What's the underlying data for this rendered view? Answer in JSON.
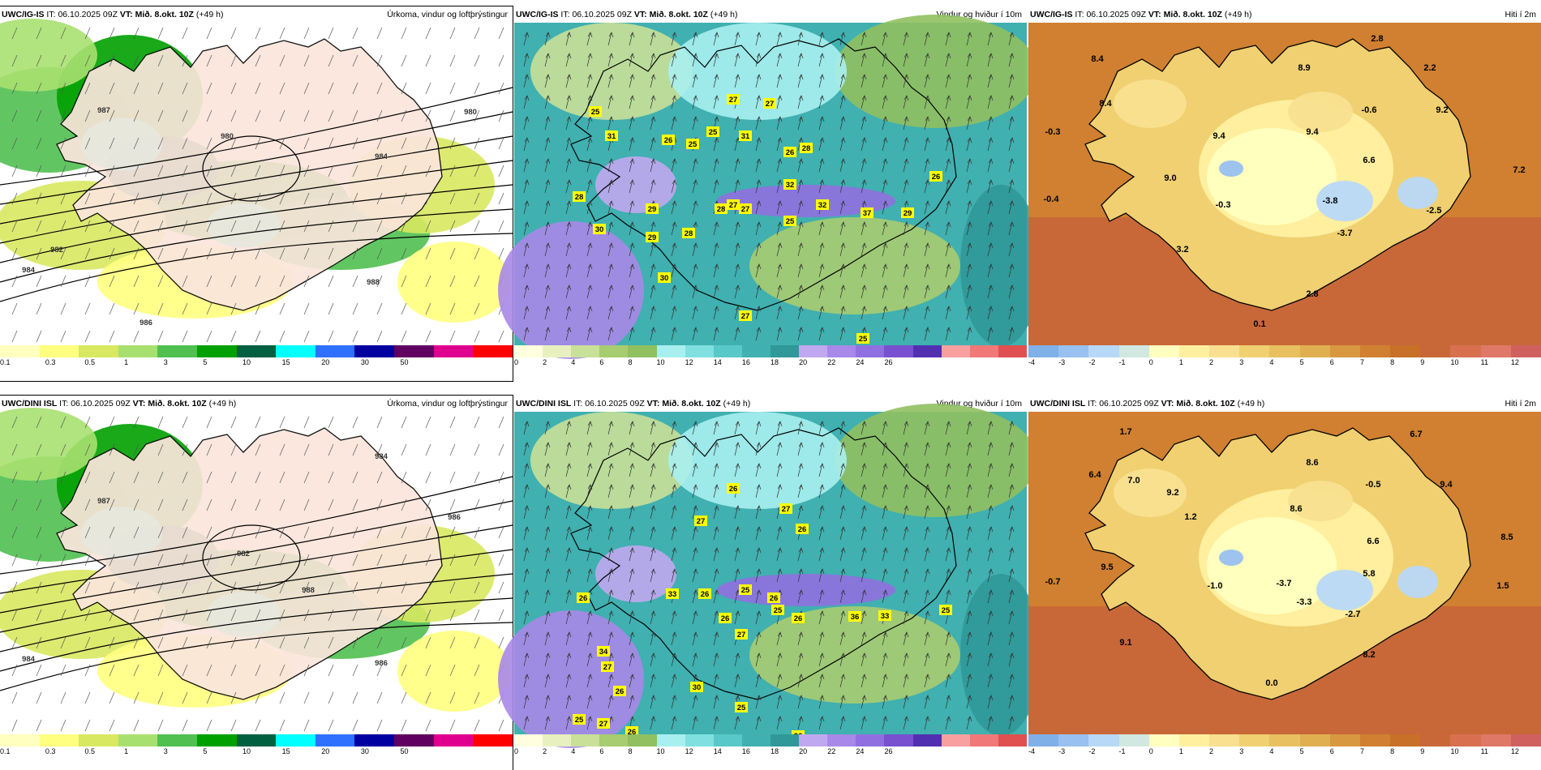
{
  "panels": [
    {
      "id": "p1",
      "model": "UWC/IG-IS",
      "it_label": "IT:",
      "it": "06.10.2025 09Z",
      "vt_label": "VT:",
      "vt": "Mið. 8.okt. 10Z",
      "lead": "(+49 h)",
      "type": "Úrkoma, vindur og loftþrýstingur",
      "style": "precip",
      "colors": [
        "#ffffc0",
        "#ffff80",
        "#d8e860",
        "#a8e070",
        "#50c050",
        "#00a000",
        "#006040",
        "#00ffff",
        "#3070ff",
        "#0000a0",
        "#600060",
        "#e00090",
        "#ff0000"
      ],
      "ticks": [
        "0.1",
        "0.3",
        "0.5",
        "1",
        "3",
        "5",
        "10",
        "15",
        "20",
        "30",
        "50"
      ],
      "labels": [
        {
          "v": "987"
        },
        {
          "v": "980"
        },
        {
          "v": "982"
        },
        {
          "v": "984"
        },
        {
          "v": "986"
        },
        {
          "v": "988"
        },
        {
          "v": "980"
        },
        {
          "v": "984"
        }
      ]
    },
    {
      "id": "p2",
      "model": "UWC/IG-IS",
      "it_label": "IT:",
      "it": "06.10.2025 09Z",
      "vt_label": "VT:",
      "vt": "Mið. 8.okt. 10Z",
      "lead": "(+49 h)",
      "type": "Vindur og hviður í 10m",
      "style": "wind",
      "colors": [
        "#ffffe0",
        "#e8f0c0",
        "#c8e098",
        "#a8cc70",
        "#90c060",
        "#a8f0f0",
        "#80e0e0",
        "#58c8c8",
        "#40b0b0",
        "#309898",
        "#c0a8f0",
        "#a888e8",
        "#9070e0",
        "#7850d0",
        "#5030b0",
        "#f8a0a0",
        "#f07878",
        "#e05050"
      ],
      "ticks": [
        "0",
        "2",
        "4",
        "6",
        "8",
        "10",
        "12",
        "14",
        "16",
        "18",
        "20",
        "22",
        "24",
        "26"
      ],
      "labels": [
        {
          "v": "25"
        },
        {
          "v": "31"
        },
        {
          "v": "26"
        },
        {
          "v": "27"
        },
        {
          "v": "25"
        },
        {
          "v": "31"
        },
        {
          "v": "27"
        },
        {
          "v": "27"
        },
        {
          "v": "28"
        },
        {
          "v": "26"
        },
        {
          "v": "26"
        },
        {
          "v": "28"
        },
        {
          "v": "29"
        },
        {
          "v": "28"
        },
        {
          "v": "27"
        },
        {
          "v": "32"
        },
        {
          "v": "32"
        },
        {
          "v": "37"
        },
        {
          "v": "29"
        },
        {
          "v": "30"
        },
        {
          "v": "29"
        },
        {
          "v": "28"
        },
        {
          "v": "30"
        },
        {
          "v": "27"
        },
        {
          "v": "25"
        },
        {
          "v": "25"
        },
        {
          "v": "25"
        }
      ]
    },
    {
      "id": "p3",
      "model": "UWC/IG-IS",
      "it_label": "IT:",
      "it": "06.10.2025 09Z",
      "vt_label": "VT:",
      "vt": "Mið. 8.okt. 10Z",
      "lead": "(+49 h)",
      "type": "Hiti í 2m",
      "style": "temp",
      "colors": [
        "#80b0e8",
        "#98c0f0",
        "#b8d8f8",
        "#d0e8e0",
        "#ffffc0",
        "#fff0a0",
        "#f8e090",
        "#f0d070",
        "#e8c060",
        "#e0b050",
        "#d89840",
        "#d08030",
        "#c87028",
        "#c86838",
        "#d87050",
        "#e07868",
        "#d06060"
      ],
      "ticks": [
        "-4",
        "-3",
        "-2",
        "-1",
        "0",
        "1",
        "2",
        "3",
        "4",
        "5",
        "6",
        "7",
        "8",
        "9",
        "10",
        "11",
        "12"
      ],
      "labels": [
        {
          "v": "2.8"
        },
        {
          "v": "8.4"
        },
        {
          "v": "8.9"
        },
        {
          "v": "2.2"
        },
        {
          "v": "8.4"
        },
        {
          "v": "-0.3"
        },
        {
          "v": "9.4"
        },
        {
          "v": "9.4"
        },
        {
          "v": "-0.6"
        },
        {
          "v": "9.2"
        },
        {
          "v": "6.6"
        },
        {
          "v": "9.0"
        },
        {
          "v": "7.2"
        },
        {
          "v": "-0.4"
        },
        {
          "v": "-0.3"
        },
        {
          "v": "-3.8"
        },
        {
          "v": "-2.5"
        },
        {
          "v": "-3.7"
        },
        {
          "v": "3.2"
        },
        {
          "v": "2.8"
        },
        {
          "v": "0.1"
        }
      ]
    },
    {
      "id": "p4",
      "model": "UWC/DINI ISL",
      "it_label": "IT:",
      "it": "06.10.2025 09Z",
      "vt_label": "VT:",
      "vt": "Mið. 8.okt. 10Z",
      "lead": "(+49 h)",
      "type": "Úrkoma, vindur og loftþrýstingur",
      "style": "precip",
      "colors": [
        "#ffffc0",
        "#ffff80",
        "#d8e860",
        "#a8e070",
        "#50c050",
        "#00a000",
        "#006040",
        "#00ffff",
        "#3070ff",
        "#0000a0",
        "#600060",
        "#e00090",
        "#ff0000"
      ],
      "ticks": [
        "0.1",
        "0.3",
        "0.5",
        "1",
        "3",
        "5",
        "10",
        "15",
        "20",
        "30",
        "50"
      ],
      "labels": [
        {
          "v": "987"
        },
        {
          "v": "984"
        },
        {
          "v": "986"
        },
        {
          "v": "988"
        },
        {
          "v": "984"
        },
        {
          "v": "982"
        },
        {
          "v": "986"
        }
      ]
    },
    {
      "id": "p5",
      "model": "UWC/DINI ISL",
      "it_label": "IT:",
      "it": "06.10.2025 09Z",
      "vt_label": "VT:",
      "vt": "Mið. 8.okt. 10Z",
      "lead": "(+49 h)",
      "type": "Vindur og hviður í 10m",
      "style": "wind",
      "colors": [
        "#ffffe0",
        "#e8f0c0",
        "#c8e098",
        "#a8cc70",
        "#90c060",
        "#a8f0f0",
        "#80e0e0",
        "#58c8c8",
        "#40b0b0",
        "#309898",
        "#c0a8f0",
        "#a888e8",
        "#9070e0",
        "#7850d0",
        "#5030b0",
        "#f8a0a0",
        "#f07878",
        "#e05050"
      ],
      "ticks": [
        "0",
        "2",
        "4",
        "6",
        "8",
        "10",
        "12",
        "14",
        "16",
        "18",
        "20",
        "22",
        "24",
        "26"
      ],
      "labels": [
        {
          "v": "26"
        },
        {
          "v": "27"
        },
        {
          "v": "27"
        },
        {
          "v": "26"
        },
        {
          "v": "25"
        },
        {
          "v": "26"
        },
        {
          "v": "26"
        },
        {
          "v": "26"
        },
        {
          "v": "33"
        },
        {
          "v": "26"
        },
        {
          "v": "25"
        },
        {
          "v": "27"
        },
        {
          "v": "26"
        },
        {
          "v": "36"
        },
        {
          "v": "33"
        },
        {
          "v": "25"
        },
        {
          "v": "34"
        },
        {
          "v": "27"
        },
        {
          "v": "26"
        },
        {
          "v": "30"
        },
        {
          "v": "26"
        },
        {
          "v": "25"
        },
        {
          "v": "25"
        },
        {
          "v": "27"
        },
        {
          "v": "26"
        }
      ]
    },
    {
      "id": "p6",
      "model": "UWC/DINI ISL",
      "it_label": "IT:",
      "it": "06.10.2025 09Z",
      "vt_label": "VT:",
      "vt": "Mið. 8.okt. 10Z",
      "lead": "(+49 h)",
      "type": "Hiti í 2m",
      "style": "temp",
      "colors": [
        "#80b0e8",
        "#98c0f0",
        "#b8d8f8",
        "#d0e8e0",
        "#ffffc0",
        "#fff0a0",
        "#f8e090",
        "#f0d070",
        "#e8c060",
        "#e0b050",
        "#d89840",
        "#d08030",
        "#c87028",
        "#c86838",
        "#d87050",
        "#e07868",
        "#d06060"
      ],
      "ticks": [
        "-4",
        "-3",
        "-2",
        "-1",
        "0",
        "1",
        "2",
        "3",
        "4",
        "5",
        "6",
        "7",
        "8",
        "9",
        "10",
        "11",
        "12"
      ],
      "labels": [
        {
          "v": "1.7"
        },
        {
          "v": "6.7"
        },
        {
          "v": "6.4"
        },
        {
          "v": "7.0"
        },
        {
          "v": "8.6"
        },
        {
          "v": "9.2"
        },
        {
          "v": "-0.5"
        },
        {
          "v": "9.4"
        },
        {
          "v": "1.2"
        },
        {
          "v": "8.6"
        },
        {
          "v": "6.6"
        },
        {
          "v": "8.5"
        },
        {
          "v": "9.5"
        },
        {
          "v": "5.8"
        },
        {
          "v": "-0.7"
        },
        {
          "v": "-1.0"
        },
        {
          "v": "-3.7"
        },
        {
          "v": "1.5"
        },
        {
          "v": "-3.3"
        },
        {
          "v": "-2.7"
        },
        {
          "v": "9.1"
        },
        {
          "v": "8.2"
        },
        {
          "v": "0.0"
        }
      ]
    }
  ]
}
